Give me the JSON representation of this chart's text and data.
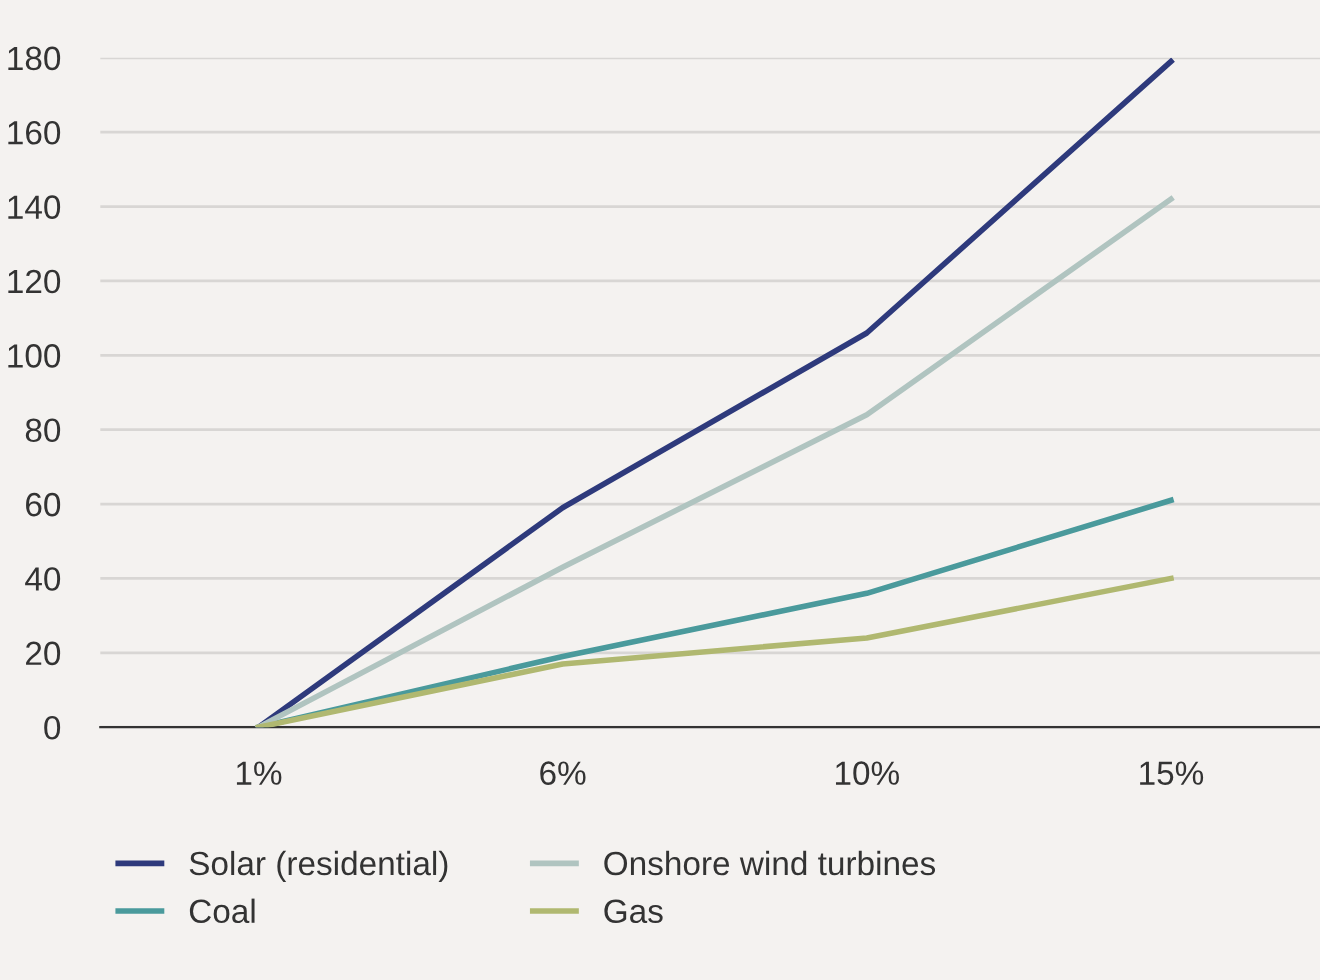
{
  "chart_data": {
    "type": "line",
    "categories": [
      "1%",
      "6%",
      "10%",
      "15%"
    ],
    "series": [
      {
        "name": "Solar (residential)",
        "color": "#2e3a7c",
        "values": [
          0,
          59,
          106,
          179
        ]
      },
      {
        "name": "Coal",
        "color": "#4a9a9c",
        "values": [
          0,
          19,
          36,
          61
        ]
      },
      {
        "name": "Onshore wind turbines",
        "color": "#b0c4c0",
        "values": [
          0,
          43,
          84,
          142
        ]
      },
      {
        "name": "Gas",
        "color": "#b0b870",
        "values": [
          0,
          17,
          24,
          40
        ]
      }
    ],
    "ylim": [
      0,
      180
    ],
    "yticks": [
      0,
      20,
      40,
      60,
      80,
      100,
      120,
      140,
      160,
      180
    ],
    "grid": "y",
    "legend": "bottom",
    "marker": "none",
    "line_style": "solid"
  }
}
